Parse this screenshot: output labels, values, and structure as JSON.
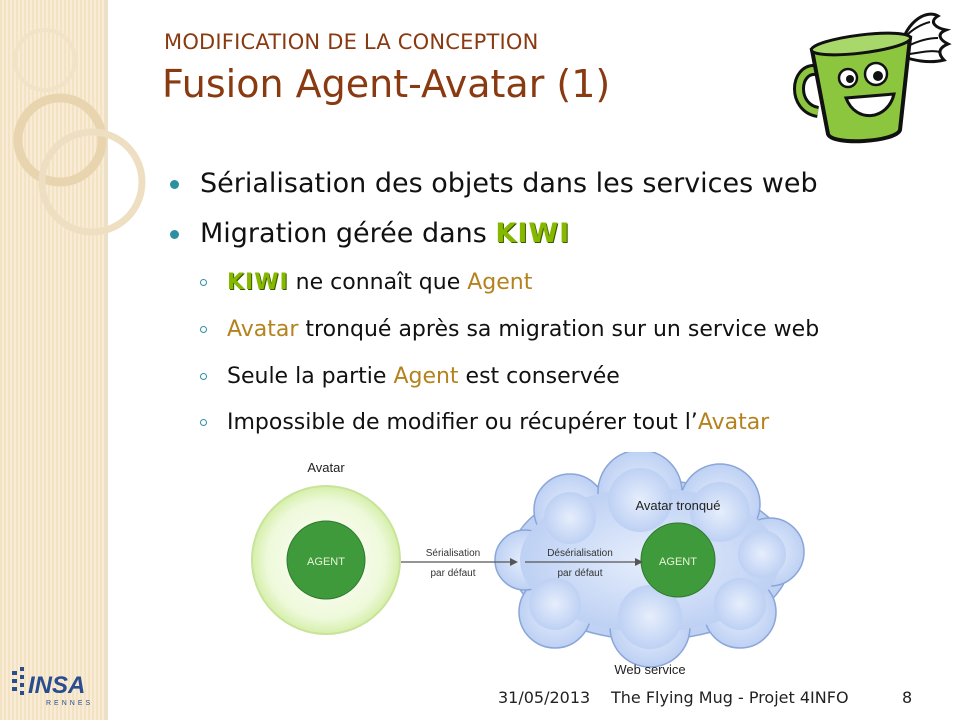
{
  "header": {
    "section": "MODIFICATION DE LA CONCEPTION",
    "title": "Fusion Agent-Avatar (1)"
  },
  "bullets": [
    {
      "text": "Sérialisation des objets dans les services web"
    },
    {
      "prefix": "Migration gérée dans ",
      "kiwi": "KIWI"
    }
  ],
  "sub_bullets": [
    {
      "kiwi": "KIWI",
      "mid": " ne connaît que ",
      "accent": "Agent"
    },
    {
      "accent": "Avatar",
      "rest": " tronqué après sa migration sur un service web"
    },
    {
      "lead": "Seule la partie ",
      "accent": "Agent",
      "rest": " est conservée"
    },
    {
      "lead": "Impossible de modifier ou récupérer tout l’",
      "accent": "Avatar"
    }
  ],
  "diagram": {
    "left_label": "Avatar",
    "left_inner": "AGENT",
    "arrow1_line1": "Sérialisation",
    "arrow1_line2": "par défaut",
    "right_label": "Avatar tronqué",
    "arrow2_line1": "Désérialisation",
    "arrow2_line2": "par défaut",
    "right_inner": "AGENT",
    "bottom_label": "Web service"
  },
  "footer": {
    "date": "31/05/2013",
    "project": "The Flying Mug - Projet 4INFO",
    "page": "8"
  },
  "logo": {
    "text": "INSA",
    "subtext": "RENNES"
  },
  "colors": {
    "title": "#8a3a10",
    "bullet_dot": "#2e8fa3",
    "kiwi": "#86b800",
    "accent": "#b5821e",
    "cloud": "#b9cff5",
    "circle_green": "#e6f6c6",
    "inner_green": "#3f9a3c"
  },
  "icons": [
    "flying-mug-icon",
    "insa-logo-icon"
  ]
}
